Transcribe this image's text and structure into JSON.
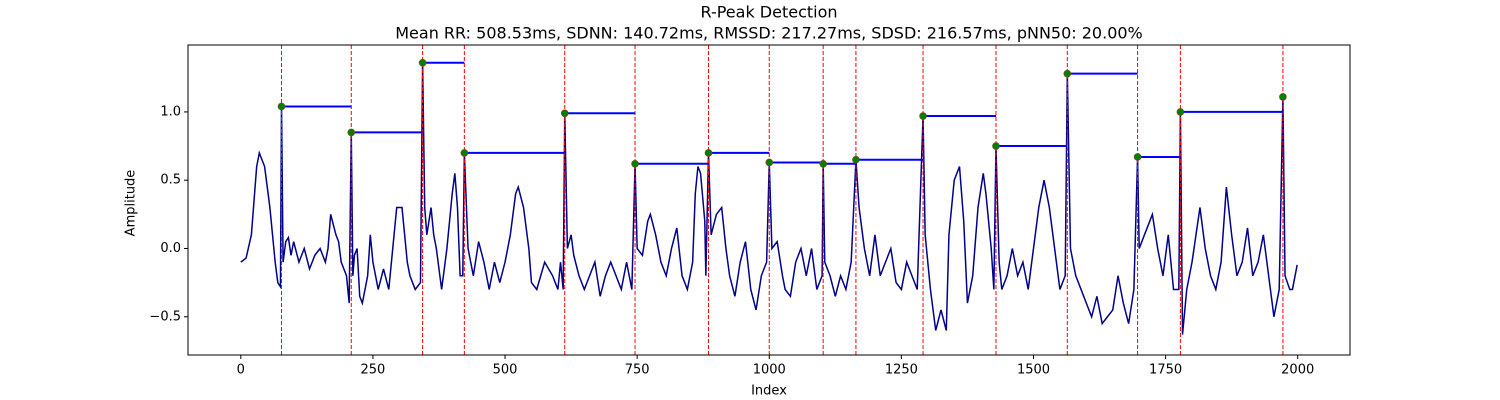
{
  "chart_data": {
    "type": "line",
    "title": "R-Peak Detection",
    "subtitle": "Mean RR: 508.53ms, SDNN: 140.72ms, RMSSD: 217.27ms, SDSD: 216.57ms, pNN50: 20.00%",
    "xlabel": "Index",
    "ylabel": "Amplitude",
    "color": "#00008b",
    "x": [
      0,
      10,
      20,
      30,
      35,
      40,
      45,
      55,
      60,
      65,
      70,
      75,
      77,
      80,
      85,
      90,
      95,
      100,
      110,
      120,
      130,
      140,
      150,
      160,
      165,
      170,
      180,
      185,
      190,
      200,
      205,
      209,
      212,
      215,
      220,
      225,
      230,
      240,
      245,
      250,
      260,
      270,
      280,
      290,
      295,
      305,
      310,
      315,
      320,
      330,
      340,
      344,
      348,
      352,
      360,
      365,
      370,
      380,
      390,
      400,
      405,
      410,
      415,
      420,
      423,
      430,
      440,
      450,
      460,
      470,
      480,
      490,
      500,
      510,
      520,
      525,
      535,
      545,
      550,
      560,
      575,
      590,
      600,
      605,
      610,
      613,
      618,
      625,
      630,
      640,
      650,
      660,
      670,
      680,
      690,
      700,
      710,
      720,
      730,
      740,
      746,
      750,
      760,
      770,
      775,
      785,
      795,
      805,
      815,
      825,
      835,
      845,
      855,
      860,
      865,
      870,
      878,
      880,
      885,
      890,
      900,
      910,
      918,
      925,
      935,
      945,
      955,
      965,
      975,
      985,
      995,
      1000,
      1005,
      1015,
      1025,
      1030,
      1040,
      1050,
      1060,
      1070,
      1080,
      1090,
      1100,
      1102,
      1105,
      1115,
      1125,
      1135,
      1145,
      1155,
      1164,
      1170,
      1180,
      1190,
      1200,
      1210,
      1220,
      1230,
      1240,
      1250,
      1260,
      1270,
      1280,
      1291,
      1295,
      1305,
      1315,
      1325,
      1335,
      1340,
      1350,
      1360,
      1368,
      1375,
      1385,
      1395,
      1405,
      1410,
      1420,
      1425,
      1429,
      1435,
      1440,
      1450,
      1460,
      1470,
      1480,
      1490,
      1500,
      1510,
      1520,
      1530,
      1540,
      1550,
      1560,
      1564,
      1570,
      1580,
      1590,
      1600,
      1610,
      1620,
      1630,
      1640,
      1650,
      1660,
      1670,
      1680,
      1690,
      1697,
      1700,
      1710,
      1720,
      1725,
      1735,
      1745,
      1755,
      1765,
      1775,
      1778,
      1782,
      1790,
      1800,
      1815,
      1825,
      1835,
      1845,
      1855,
      1865,
      1875,
      1885,
      1895,
      1905,
      1915,
      1925,
      1935,
      1945,
      1955,
      1965,
      1972,
      1976,
      1985,
      1990,
      1999
    ],
    "values": [
      -0.1,
      -0.07,
      0.1,
      0.6,
      0.7,
      0.65,
      0.6,
      0.3,
      0.1,
      -0.1,
      -0.25,
      -0.28,
      1.04,
      -0.1,
      0.05,
      0.08,
      -0.05,
      0.05,
      -0.1,
      0.0,
      -0.15,
      -0.05,
      0.0,
      -0.1,
      0.0,
      0.25,
      0.1,
      0.05,
      -0.1,
      -0.2,
      -0.4,
      0.85,
      -0.2,
      -0.05,
      0.0,
      -0.35,
      -0.4,
      -0.2,
      0.1,
      -0.1,
      -0.3,
      -0.15,
      -0.3,
      0.1,
      0.3,
      0.3,
      0.1,
      -0.1,
      -0.2,
      -0.3,
      -0.25,
      1.36,
      0.3,
      0.1,
      0.3,
      0.1,
      0.0,
      -0.3,
      0.0,
      0.4,
      0.55,
      0.3,
      -0.2,
      -0.2,
      0.7,
      0.0,
      -0.2,
      0.05,
      -0.1,
      -0.3,
      -0.1,
      -0.25,
      -0.1,
      0.1,
      0.4,
      0.45,
      0.3,
      0.0,
      -0.25,
      -0.3,
      -0.1,
      -0.2,
      -0.3,
      -0.1,
      -0.3,
      0.99,
      0.0,
      0.1,
      -0.05,
      -0.2,
      -0.3,
      -0.2,
      -0.1,
      -0.35,
      -0.2,
      -0.1,
      -0.2,
      -0.3,
      -0.1,
      -0.3,
      0.62,
      0.0,
      -0.05,
      0.2,
      0.25,
      0.1,
      -0.1,
      -0.2,
      0.0,
      0.15,
      -0.2,
      -0.3,
      -0.1,
      0.4,
      0.6,
      0.55,
      0.2,
      -0.2,
      0.7,
      0.1,
      0.25,
      0.3,
      0.0,
      -0.2,
      -0.35,
      -0.1,
      0.05,
      -0.3,
      -0.45,
      -0.2,
      -0.1,
      0.63,
      0.0,
      0.05,
      -0.2,
      -0.3,
      -0.35,
      -0.1,
      0.0,
      -0.2,
      0.0,
      -0.3,
      -0.2,
      0.62,
      -0.1,
      -0.2,
      -0.35,
      -0.2,
      -0.3,
      -0.1,
      0.65,
      0.3,
      0.0,
      -0.2,
      0.1,
      -0.2,
      -0.1,
      0.0,
      -0.25,
      -0.3,
      -0.1,
      -0.2,
      -0.3,
      0.97,
      0.1,
      -0.3,
      -0.6,
      -0.45,
      -0.6,
      0.1,
      0.5,
      0.6,
      0.2,
      -0.4,
      -0.2,
      0.3,
      0.55,
      0.4,
      0.0,
      -0.3,
      0.75,
      -0.1,
      -0.3,
      -0.2,
      0.0,
      -0.2,
      -0.1,
      -0.3,
      0.0,
      0.3,
      0.5,
      0.3,
      0.0,
      -0.3,
      -0.2,
      1.28,
      0.0,
      -0.2,
      -0.3,
      -0.4,
      -0.5,
      -0.35,
      -0.55,
      -0.5,
      -0.45,
      -0.2,
      -0.4,
      -0.55,
      -0.3,
      0.67,
      0.0,
      0.1,
      0.2,
      0.25,
      0.0,
      -0.2,
      0.1,
      -0.3,
      -0.3,
      1.0,
      -0.63,
      -0.3,
      -0.1,
      0.3,
      0.0,
      -0.2,
      -0.3,
      -0.1,
      0.45,
      0.1,
      -0.2,
      -0.1,
      0.15,
      -0.2,
      -0.1,
      0.1,
      -0.2,
      -0.5,
      -0.3,
      1.11,
      -0.2,
      -0.3,
      -0.3,
      -0.12
    ],
    "peaks": {
      "x": [
        77,
        209,
        344,
        423,
        613,
        746,
        885,
        1000,
        1102,
        1164,
        1291,
        1429,
        1564,
        1697,
        1778,
        1972
      ],
      "y": [
        1.04,
        0.85,
        1.36,
        0.7,
        0.99,
        0.62,
        0.7,
        0.63,
        0.62,
        0.65,
        0.97,
        0.75,
        1.28,
        0.67,
        1.0,
        1.11
      ],
      "color": "green",
      "line_color": "red",
      "rr_color": "blue"
    },
    "xlim": [
      -99.95,
      2098.95
    ],
    "ylim": [
      -0.78,
      1.49
    ],
    "xticks": [
      0,
      250,
      500,
      750,
      1000,
      1250,
      1500,
      1750,
      2000
    ],
    "yticks": [
      {
        "value": -0.5,
        "label": "−0.5"
      },
      {
        "value": 0,
        "label": "0.0"
      },
      {
        "value": 0.5,
        "label": "0.5"
      },
      {
        "value": 1,
        "label": "1.0"
      }
    ]
  }
}
